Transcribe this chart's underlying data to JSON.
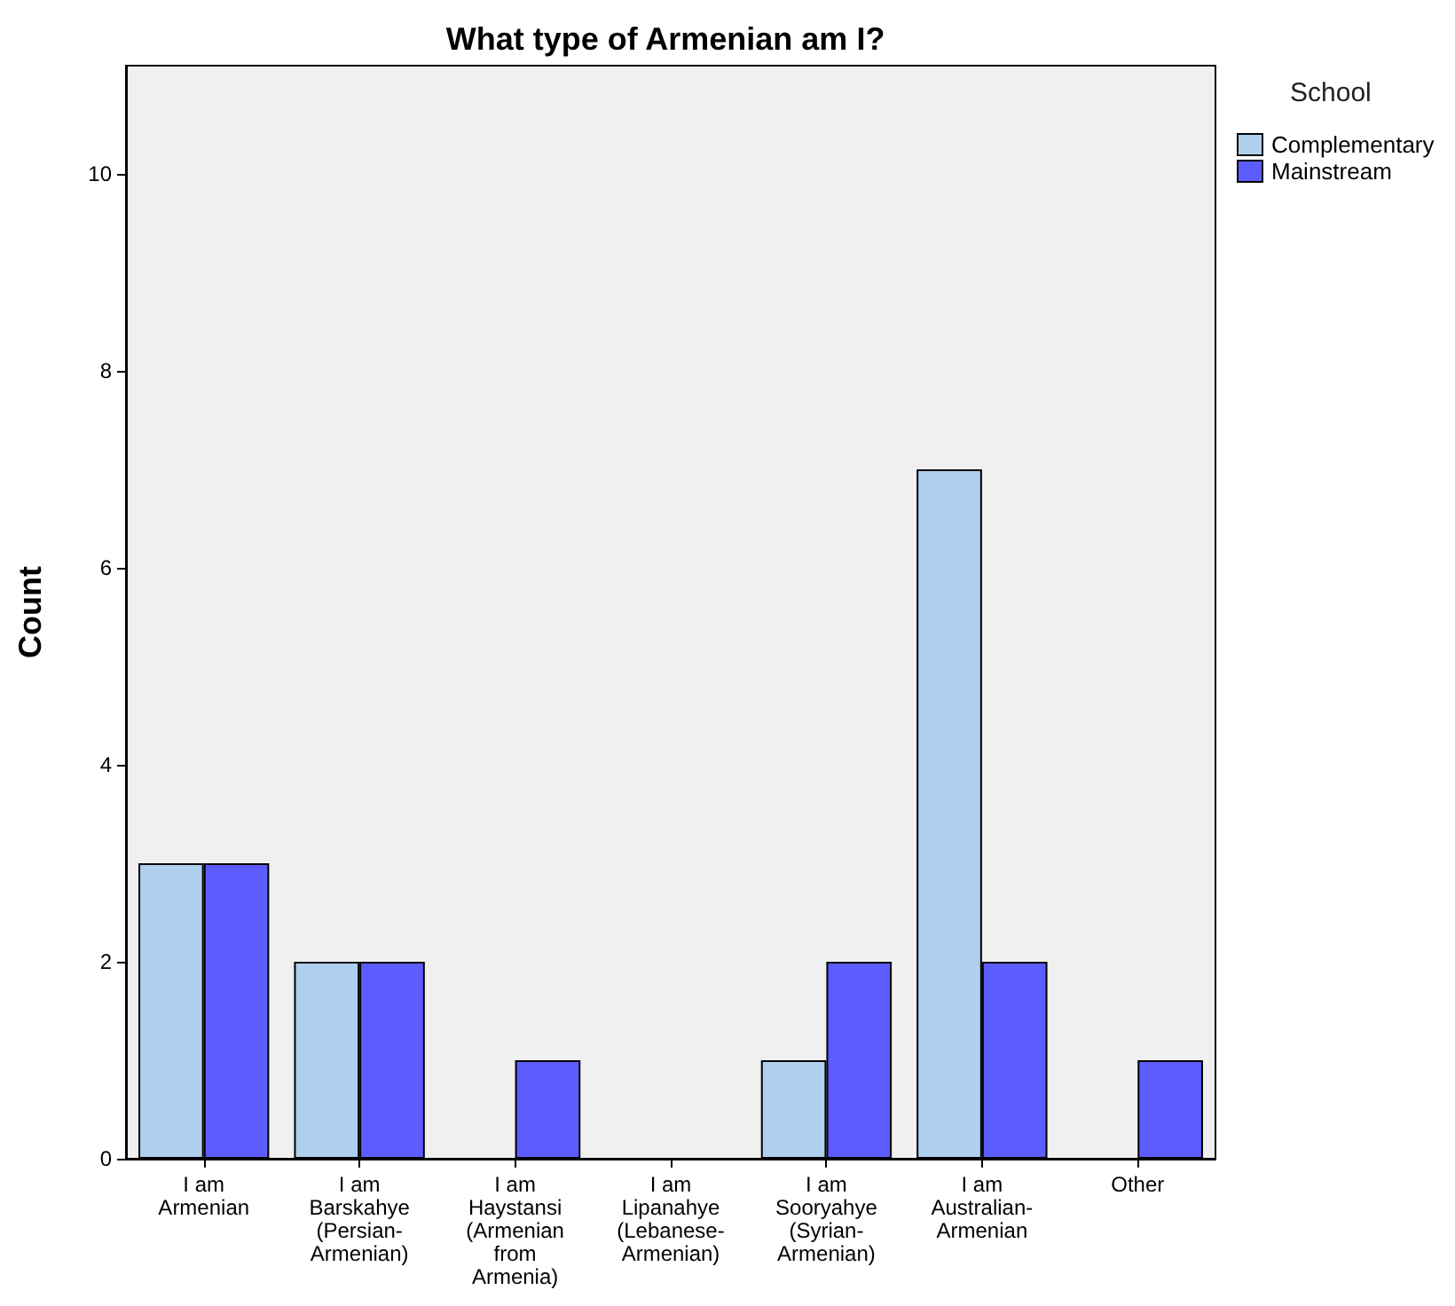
{
  "chart_data": {
    "type": "bar",
    "title": "What type of Armenian am I?",
    "ylabel": "Count",
    "legend_title": "School",
    "categories": [
      "I am Armenian",
      "I am Barskahye (Persian-Armenian)",
      "I am Haystansi (Armenian from Armenia)",
      "I am Lipanahye (Lebanese-Armenian)",
      "I am Sooryahye (Syrian-Armenian)",
      "I am Australian-Armenian",
      "Other"
    ],
    "series": [
      {
        "name": "Complementary",
        "color": "#aed0ee",
        "values": [
          3,
          2,
          0,
          0,
          1,
          7,
          0
        ]
      },
      {
        "name": "Mainstream",
        "color": "#5c5cff",
        "values": [
          3,
          2,
          1,
          0,
          2,
          2,
          1
        ]
      }
    ],
    "ylim": [
      0,
      11.1
    ],
    "yticks": [
      0,
      2,
      4,
      6,
      8,
      10
    ],
    "grid": false,
    "legend": "top right"
  }
}
